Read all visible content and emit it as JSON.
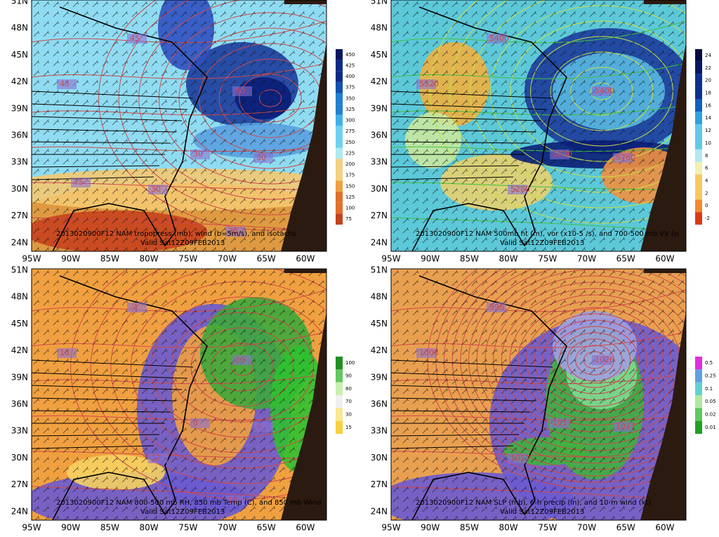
{
  "lat_labels": [
    "51N",
    "48N",
    "45N",
    "42N",
    "39N",
    "36N",
    "33N",
    "30N",
    "27N",
    "24N"
  ],
  "lon_labels": [
    "95W",
    "90W",
    "85W",
    "80W",
    "75W",
    "70W",
    "65W",
    "60W"
  ],
  "panels": [
    {
      "caption": "2013020900F12 NAM tropopress (mb), wind (b=5m/s), and isotachs",
      "valid": "Valid Sat12Z09FEB2013",
      "colorbar": [
        "450",
        "425",
        "400",
        "375",
        "350",
        "325",
        "300",
        "275",
        "250",
        "225",
        "200",
        "175",
        "150",
        "125",
        "100",
        "75"
      ],
      "contour_labels": [
        "45",
        "45",
        "30",
        "30",
        "30",
        "30",
        "30",
        "75"
      ]
    },
    {
      "caption": "2013020900F12 NAM 500mb ht (m), vor (x10-5 /s), and 700-500 mb VV (u",
      "valid": "Valid Sat12Z09FEB2013",
      "colorbar": [
        "24",
        "22",
        "20",
        "18",
        "16",
        "14",
        "12",
        "10",
        "8",
        "6",
        "4",
        "2",
        "0",
        "-2"
      ],
      "contour_labels": [
        "5400",
        "5520",
        "5400",
        "5280",
        "5760",
        "5280"
      ]
    },
    {
      "caption": "2013020900F12 NAM 800-500 mb RH, 850 mb Temp (C), and 850 mb Wind",
      "valid": "Valid Sat12Z09FEB2013",
      "colorbar": [
        "100",
        "90",
        "80",
        "70",
        "30",
        "15"
      ],
      "contour_labels": [
        "-4",
        "16",
        "16",
        "8",
        "4",
        "12",
        "12"
      ]
    },
    {
      "caption": "2013020900F12 NAM SLP (mb), 6-h precip (in), and 10-m wind (kt)",
      "valid": "Valid Sat12Z09FEB2013",
      "colorbar": [
        "0.5",
        "0.25",
        "0.1",
        "0.05",
        "0.02",
        "0.01"
      ],
      "contour_labels": [
        "996",
        "1008",
        "1026",
        "1017",
        "1017",
        "1017"
      ]
    }
  ]
}
